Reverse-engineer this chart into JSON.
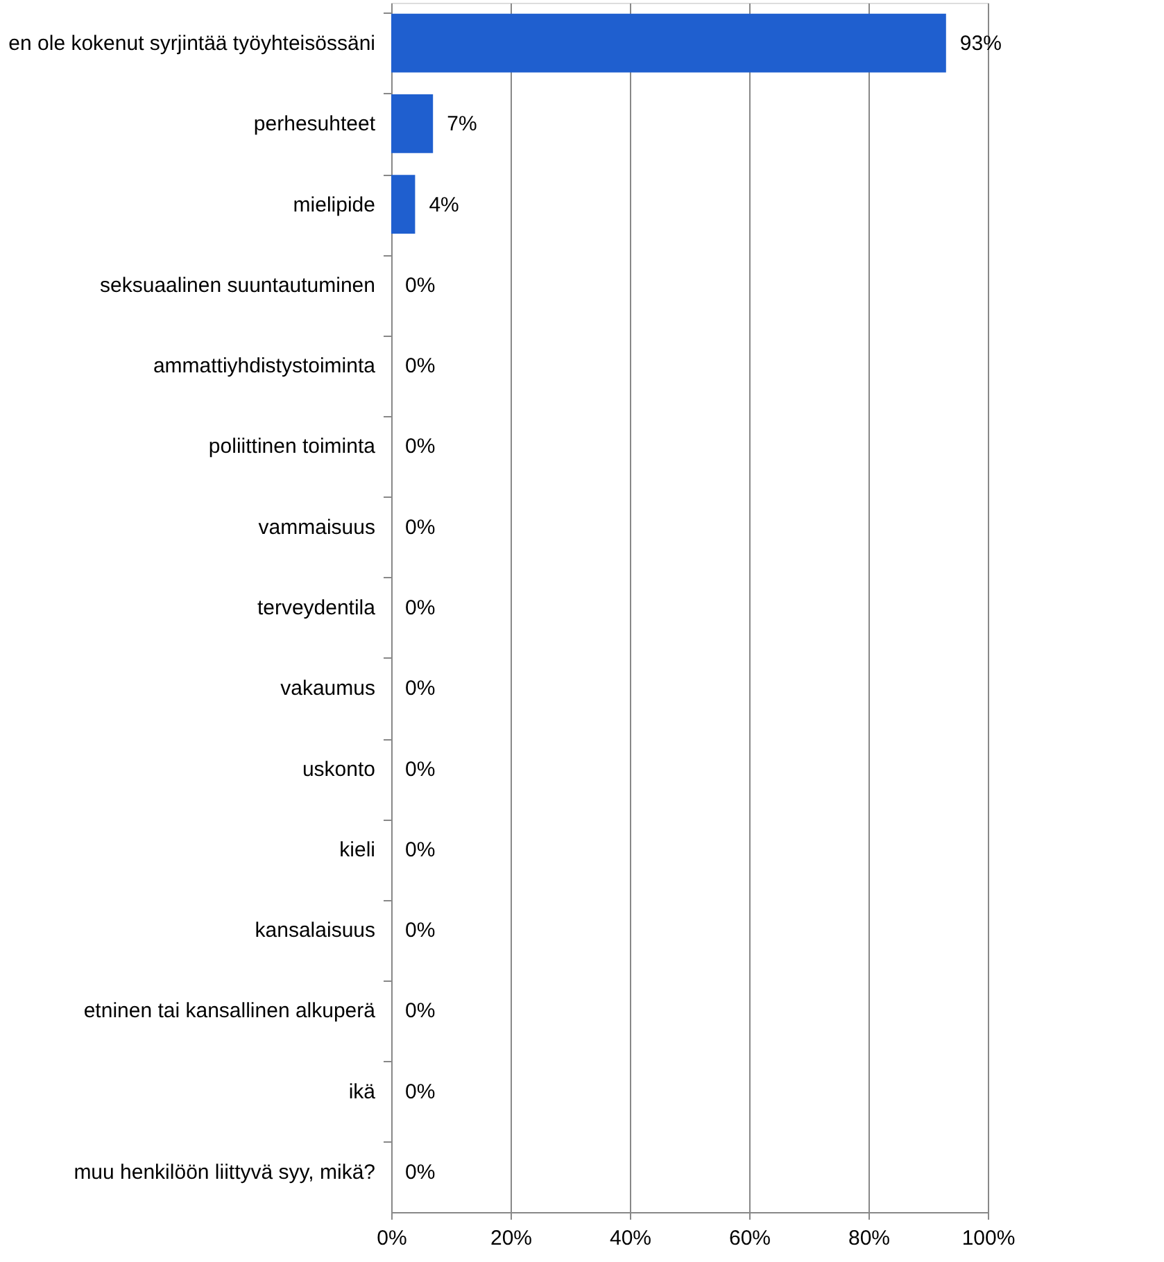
{
  "chart_data": {
    "type": "bar",
    "orientation": "horizontal",
    "categories": [
      "en ole kokenut syrjintää työyhteisössäni",
      "perhesuhteet",
      "mielipide",
      "seksuaalinen suuntautuminen",
      "ammattiyhdistystoiminta",
      "poliittinen toiminta",
      "vammaisuus",
      "terveydentila",
      "vakaumus",
      "uskonto",
      "kieli",
      "kansalaisuus",
      "etninen tai kansallinen alkuperä",
      "ikä",
      "muu henkilöön liittyvä syy, mikä?"
    ],
    "values": [
      93,
      7,
      4,
      0,
      0,
      0,
      0,
      0,
      0,
      0,
      0,
      0,
      0,
      0,
      0
    ],
    "value_labels": [
      "93%",
      "7%",
      "4%",
      "0%",
      "0%",
      "0%",
      "0%",
      "0%",
      "0%",
      "0%",
      "0%",
      "0%",
      "0%",
      "0%",
      "0%"
    ],
    "color": "#1f5fcf",
    "xlim": [
      0,
      100
    ],
    "xticks": [
      {
        "value": 0,
        "label": "0%"
      },
      {
        "value": 20,
        "label": "20%"
      },
      {
        "value": 40,
        "label": "40%"
      },
      {
        "value": 60,
        "label": "60%"
      },
      {
        "value": 80,
        "label": "80%"
      },
      {
        "value": 100,
        "label": "100%"
      }
    ],
    "grid": "x"
  }
}
